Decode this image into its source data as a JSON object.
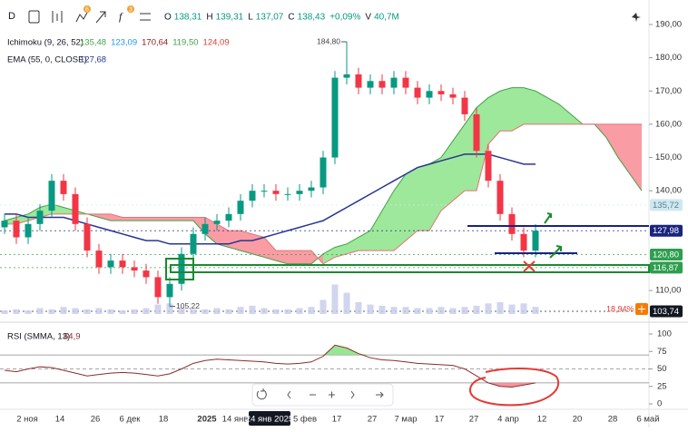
{
  "header": {
    "interval": "D",
    "badges": [
      "6",
      "3"
    ],
    "ohlc": [
      {
        "key": "O",
        "value": "138,31"
      },
      {
        "key": "H",
        "value": "139,31"
      },
      {
        "key": "L",
        "value": "137,07"
      },
      {
        "key": "C",
        "value": "138,43"
      }
    ],
    "change": "+0,09%",
    "volume": {
      "key": "V",
      "value": "40,7M"
    }
  },
  "time_labels": [
    "2 ноя",
    "14",
    "26",
    "6 дек",
    "18",
    "2025",
    "14 янв",
    "24 янв 2025",
    "5 фев",
    "17",
    "27",
    "7 мар",
    "17",
    "27",
    "4 апр",
    "12",
    "20",
    "28",
    "6 май"
  ],
  "chart_data": [
    {
      "type": "candlestick",
      "up_color": "#089981",
      "down_color": "#f23645",
      "open": [
        129,
        131,
        126,
        130,
        134,
        143,
        139,
        130,
        122,
        117,
        119,
        117,
        116,
        114,
        108,
        112,
        121,
        127,
        130,
        131,
        133,
        137,
        140,
        140,
        139,
        139,
        140,
        141,
        150,
        174,
        175,
        171,
        173,
        171,
        174,
        171,
        168,
        170,
        169,
        168,
        163,
        152,
        143,
        133,
        127,
        122
      ],
      "high": [
        133,
        133,
        132,
        136,
        145,
        145,
        141,
        132,
        124,
        121,
        121,
        119,
        118,
        116,
        114,
        123,
        129,
        132,
        133,
        135,
        139,
        142,
        142,
        142,
        141,
        142,
        143,
        152,
        176,
        184.8,
        177,
        175,
        175,
        176,
        176,
        173,
        172,
        172,
        171,
        170,
        165,
        154,
        145,
        135,
        129,
        130
      ],
      "low": [
        127,
        124,
        124,
        128,
        132,
        137,
        128,
        120,
        115,
        115,
        115,
        114,
        112,
        106,
        105.22,
        110,
        119,
        125,
        128,
        129,
        131,
        135,
        138,
        137,
        137,
        137,
        138,
        139,
        148,
        172,
        169,
        169,
        169,
        169,
        169,
        166,
        166,
        167,
        166,
        161,
        150,
        141,
        131,
        125,
        120,
        120
      ],
      "close": [
        131,
        126,
        130,
        134,
        143,
        139,
        130,
        122,
        117,
        119,
        117,
        116,
        114,
        108,
        112,
        121,
        127,
        130,
        131,
        133,
        137,
        140,
        140,
        139,
        139,
        140,
        141,
        150,
        174,
        175,
        171,
        173,
        171,
        174,
        171,
        168,
        170,
        169,
        168,
        163,
        152,
        143,
        133,
        127,
        122,
        128
      ],
      "high_labels": [
        null,
        null,
        null,
        null,
        null,
        null,
        null,
        null,
        null,
        null,
        null,
        null,
        null,
        null,
        null,
        null,
        null,
        null,
        null,
        null,
        null,
        null,
        null,
        null,
        null,
        null,
        null,
        null,
        null,
        "184,80",
        null,
        null,
        null,
        null,
        null,
        null,
        null,
        null,
        null,
        null,
        null,
        null,
        null,
        null,
        null,
        null
      ],
      "low_labels": [
        null,
        null,
        null,
        null,
        null,
        null,
        null,
        null,
        null,
        null,
        null,
        null,
        null,
        null,
        "105,22",
        null,
        null,
        null,
        null,
        null,
        null,
        null,
        null,
        null,
        null,
        null,
        null,
        null,
        null,
        null,
        null,
        null,
        null,
        null,
        null,
        null,
        null,
        null,
        null,
        null,
        null,
        null,
        null,
        null,
        null,
        null
      ],
      "cloud": {
        "name": "Ichimoku (9, 26, 52)",
        "labels": [
          {
            "text": "135,48",
            "color": "#43a047"
          },
          {
            "text": "123,09",
            "color": "#2196f3"
          },
          {
            "text": "170,64",
            "color": "#8b1a1a"
          },
          {
            "text": "119,50",
            "color": "#43a047"
          },
          {
            "text": "124,09",
            "color": "#e53935"
          }
        ],
        "span_a_color": "#43a047",
        "span_b_color": "#e57373",
        "up_fill": "#7ee07a",
        "down_fill": "#f77b86",
        "span_a": [
          131,
          132,
          133,
          135,
          136,
          135,
          134,
          133,
          132,
          131,
          131,
          131,
          131,
          131,
          131,
          131,
          131,
          127,
          124,
          123,
          122,
          121,
          120,
          119,
          118,
          118,
          118,
          121,
          123,
          124,
          126,
          128,
          134,
          140,
          145,
          147,
          148,
          150,
          155,
          160,
          165,
          168,
          170,
          171,
          171,
          170,
          168,
          166,
          163,
          160,
          160,
          156,
          150,
          145,
          140
        ],
        "span_b": [
          130,
          130,
          131,
          132,
          133,
          133,
          133,
          133,
          133,
          133,
          132,
          132,
          132,
          132,
          132,
          132,
          132,
          132,
          130,
          128,
          128,
          127,
          126,
          122,
          122,
          122,
          122,
          118,
          120,
          121,
          122,
          122,
          122,
          122,
          125,
          128,
          128,
          134,
          137,
          140,
          140,
          154,
          158,
          158,
          160,
          160,
          160,
          160,
          160,
          160,
          160,
          160,
          160,
          160,
          160
        ]
      },
      "series": [
        {
          "name": "EMA (55, 0, CLOSE)",
          "label": "127,68",
          "color": "#283593",
          "values": [
            133,
            133,
            132,
            132,
            132,
            132,
            131,
            130,
            129,
            128,
            127,
            126,
            125,
            125,
            124,
            124,
            124,
            124,
            124,
            124,
            125,
            125,
            126,
            127,
            128,
            129,
            130,
            131,
            133,
            135,
            137,
            139,
            141,
            143,
            145,
            147,
            148,
            149,
            150,
            151,
            151,
            151,
            150,
            149,
            148,
            148
          ]
        }
      ],
      "volume": [
        3,
        4,
        3,
        5,
        4,
        6,
        5,
        4,
        5,
        4,
        3,
        4,
        5,
        8,
        9,
        5,
        4,
        4,
        5,
        4,
        6,
        7,
        5,
        4,
        4,
        5,
        6,
        12,
        25,
        18,
        10,
        8,
        7,
        6,
        6,
        5,
        5,
        6,
        5,
        6,
        7,
        9,
        10,
        8,
        9,
        6
      ],
      "ylim": [
        103.2,
        190
      ],
      "yticks": [
        {
          "value": 190,
          "label": "190,00"
        },
        {
          "value": 180,
          "label": "180,00"
        },
        {
          "value": 170,
          "label": "170,00"
        },
        {
          "value": 160,
          "label": "160,00"
        },
        {
          "value": 150,
          "label": "150,00"
        },
        {
          "value": 140,
          "label": "140,00"
        },
        {
          "value": 110,
          "label": "110,00"
        }
      ],
      "price_tags": [
        {
          "value": 135.72,
          "label": "135,72",
          "bg": "#cfe8f0",
          "fg": "#5a7f8c"
        },
        {
          "value": 127.98,
          "label": "127,98",
          "bg": "#1a237e",
          "fg": "#ffffff"
        },
        {
          "value": 120.8,
          "label": "120,80",
          "bg": "#2e9e4f",
          "fg": "#ffffff"
        },
        {
          "value": 116.87,
          "label": "116,87",
          "bg": "#2e9e4f",
          "fg": "#ffffff"
        },
        {
          "value": 103.74,
          "label": "103,74",
          "bg": "#131722",
          "fg": "#ffffff"
        }
      ],
      "percent_label": "18,94%"
    },
    {
      "type": "line",
      "name": "RSI (SMMA, 13)",
      "label": "64,9",
      "color": "#8b2c2c",
      "over_fill": "#7ee07a",
      "under_fill": "#f77b86",
      "values": [
        48,
        46,
        50,
        53,
        52,
        48,
        44,
        40,
        42,
        44,
        45,
        44,
        42,
        40,
        43,
        50,
        58,
        62,
        64,
        63,
        62,
        61,
        60,
        58,
        57,
        58,
        60,
        68,
        84,
        80,
        72,
        66,
        63,
        62,
        60,
        58,
        57,
        56,
        55,
        50,
        40,
        30,
        25,
        24,
        27,
        30
      ],
      "ylim": [
        0,
        100
      ],
      "yticks": [
        100,
        75,
        50,
        25,
        0
      ],
      "levels": [
        70,
        50,
        30
      ]
    }
  ]
}
